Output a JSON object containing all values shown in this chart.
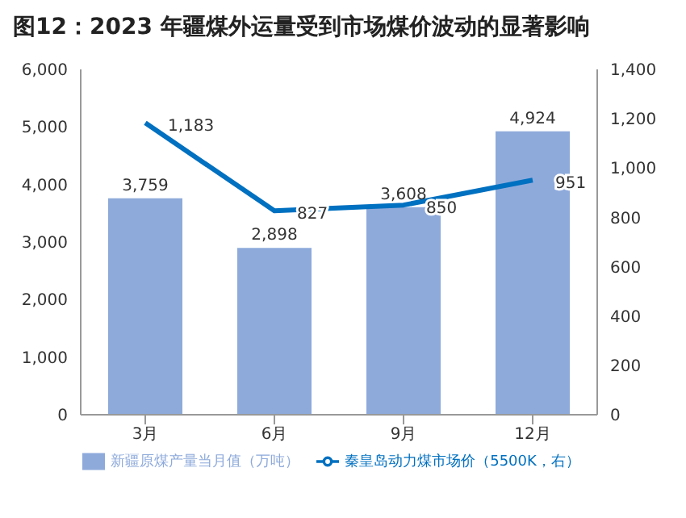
{
  "chart_data": {
    "type": "bar",
    "title": "图12：2023 年疆煤外运量受到市场煤价波动的显著影响",
    "categories": [
      "3月",
      "6月",
      "9月",
      "12月"
    ],
    "series": [
      {
        "name": "新疆原煤产量当月值（万吨）",
        "color": "#8eaadb",
        "values": [
          3759,
          2898,
          3608,
          4924
        ],
        "value_labels": [
          "3,759",
          "2,898",
          "3,608",
          "4,924"
        ]
      },
      {
        "name": "秦皇岛动力煤市场价（5500K，右）",
        "type": "line",
        "axis": "y2",
        "color": "#0070c0",
        "values": [
          1183,
          827,
          850,
          951
        ],
        "value_labels": [
          "1,183",
          "827",
          "850",
          "951"
        ]
      }
    ],
    "ylim": [
      0,
      6000
    ],
    "yticks": [
      {
        "value": 0,
        "label": "0"
      },
      {
        "value": 1000,
        "label": "1,000"
      },
      {
        "value": 2000,
        "label": "2,000"
      },
      {
        "value": 3000,
        "label": "3,000"
      },
      {
        "value": 4000,
        "label": "4,000"
      },
      {
        "value": 5000,
        "label": "5,000"
      },
      {
        "value": 6000,
        "label": "6,000"
      }
    ],
    "y2lim": [
      0,
      1400
    ],
    "y2ticks": [
      {
        "value": 0,
        "label": "0"
      },
      {
        "value": 200,
        "label": "200"
      },
      {
        "value": 400,
        "label": "400"
      },
      {
        "value": 600,
        "label": "600"
      },
      {
        "value": 800,
        "label": "800"
      },
      {
        "value": 1000,
        "label": "1,000"
      },
      {
        "value": 1200,
        "label": "1,200"
      },
      {
        "value": 1400,
        "label": "1,400"
      }
    ],
    "legend": "bottom",
    "marker": "none",
    "line_style": "solid",
    "grid": false
  }
}
